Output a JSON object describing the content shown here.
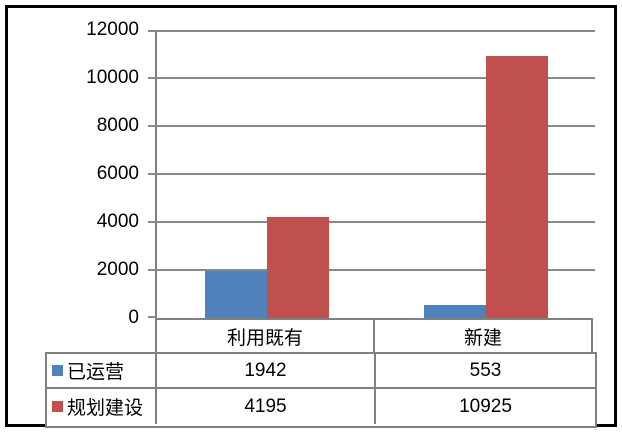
{
  "chart_data": {
    "type": "bar",
    "title": "",
    "xlabel": "",
    "ylabel": "",
    "categories": [
      "利用既有",
      "新建"
    ],
    "series": [
      {
        "name": "已运营",
        "color": "#4F81BD",
        "values": [
          1942,
          553
        ]
      },
      {
        "name": "规划建设",
        "color": "#C0504D",
        "values": [
          4195,
          10925
        ]
      }
    ],
    "ylim": [
      0,
      12000
    ],
    "yticks": [
      0,
      2000,
      4000,
      6000,
      8000,
      10000,
      12000
    ],
    "grid": true,
    "data_table": true,
    "legend_position": "left-of-data-table"
  },
  "colors": {
    "series_operating": "#4F81BD",
    "series_planned": "#C0504D",
    "gridline": "#898989",
    "axis_line": "#808080",
    "table_border": "#808080",
    "outer_border": "#000000",
    "background": "#FFFFFF",
    "text": "#000000"
  }
}
